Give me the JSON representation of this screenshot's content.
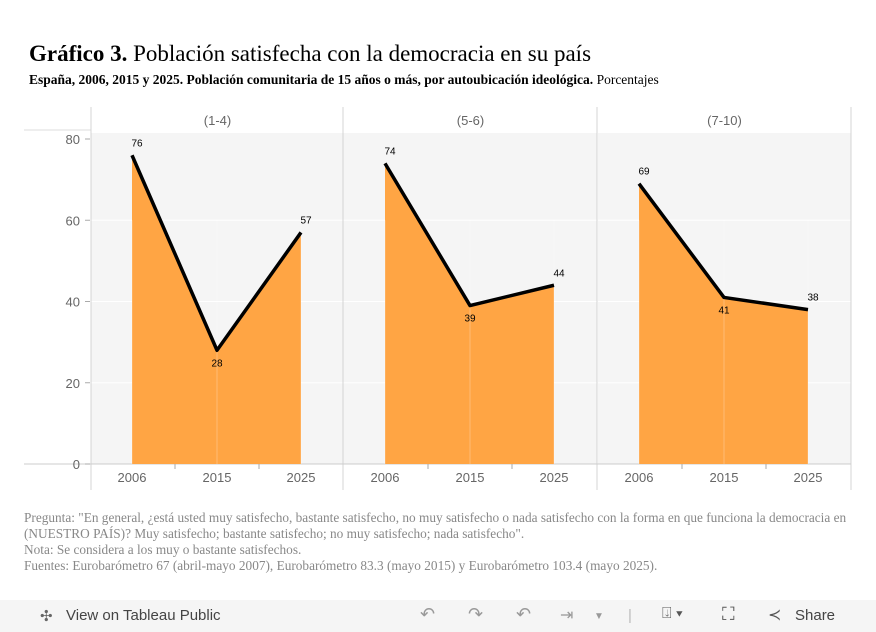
{
  "title": {
    "bold": "Gráfico 3.",
    "text": "Población satisfecha con la democracia en su país"
  },
  "subtitle": {
    "bold": "España, 2006, 2015 y 2025. Población comunitaria de 15 años o más, por autoubicación ideológica.",
    "text": "Porcentajes"
  },
  "chart_data": {
    "type": "area",
    "categories": [
      "2006",
      "2015",
      "2025"
    ],
    "panels": [
      {
        "name": "(1-4)",
        "values": [
          76,
          28,
          57
        ]
      },
      {
        "name": "(5-6)",
        "values": [
          74,
          39,
          44
        ]
      },
      {
        "name": "(7-10)",
        "values": [
          69,
          41,
          38
        ]
      }
    ],
    "ylim": [
      0,
      80
    ],
    "yticks": [
      0,
      20,
      40,
      60,
      80
    ],
    "colors": {
      "fill": "#ffa544",
      "line": "#000000",
      "panel_bg": "#f5f5f5"
    },
    "grid": true
  },
  "notes": [
    "Pregunta: \"En general, ¿está usted muy satisfecho, bastante satisfecho, no muy satisfecho o nada satisfecho con la forma en que funciona la democracia en (NUESTRO PAÍS)? Muy satisfecho; bastante satisfecho; no muy satisfecho; nada satisfecho\".",
    "Nota: Se considera a los muy o bastante satisfechos.",
    "Fuentes: Eurobarómetro 67 (abril-mayo 2007), Eurobarómetro 83.3 (mayo 2015) y Eurobarómetro 103.4 (mayo 2025)."
  ],
  "toolbar": {
    "view_label": "View on Tableau Public",
    "share_label": "Share"
  }
}
